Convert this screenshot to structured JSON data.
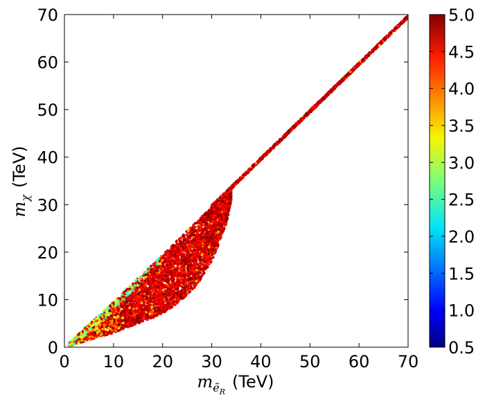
{
  "chart_data": {
    "type": "scatter",
    "xlabel": {
      "symbol": "m",
      "subscript": "ẽ",
      "subsubscript": "R",
      "unit": "(TeV)"
    },
    "ylabel": {
      "symbol": "m",
      "subscript": "χ",
      "unit": "(TeV)"
    },
    "xlim": [
      0,
      70
    ],
    "ylim": [
      0,
      70
    ],
    "x_ticks": [
      "0",
      "10",
      "20",
      "30",
      "40",
      "50",
      "60",
      "70"
    ],
    "y_ticks": [
      "0",
      "10",
      "20",
      "30",
      "40",
      "50",
      "60",
      "70"
    ],
    "grid": false,
    "colorbar": {
      "min": 0.5,
      "max": 5.0,
      "colormap": "jet",
      "ticks": [
        "0.5",
        "1.0",
        "1.5",
        "2.0",
        "2.5",
        "3.0",
        "3.5",
        "4.0",
        "4.5",
        "5.0"
      ]
    },
    "regions": [
      {
        "name": "diagonal band",
        "x_range": [
          0,
          70
        ],
        "relation": "y ≈ x",
        "dominant_color_value": 4.6
      },
      {
        "name": "filled wedge",
        "boundary_upper": [
          [
            0,
            0
          ],
          [
            10,
            9.5
          ],
          [
            20,
            19.5
          ],
          [
            30,
            29.5
          ],
          [
            34,
            33
          ]
        ],
        "boundary_lower": [
          [
            1,
            0.2
          ],
          [
            5,
            1.5
          ],
          [
            10,
            3
          ],
          [
            15,
            5
          ],
          [
            20,
            7
          ],
          [
            24,
            10
          ],
          [
            27,
            13
          ],
          [
            30,
            18
          ],
          [
            33,
            26
          ],
          [
            34,
            31
          ]
        ],
        "dominant_color_value": 4.6,
        "low_value_edge": "upper-left edge near y = x for x < 20 shows values 2.0–3.8"
      }
    ]
  }
}
